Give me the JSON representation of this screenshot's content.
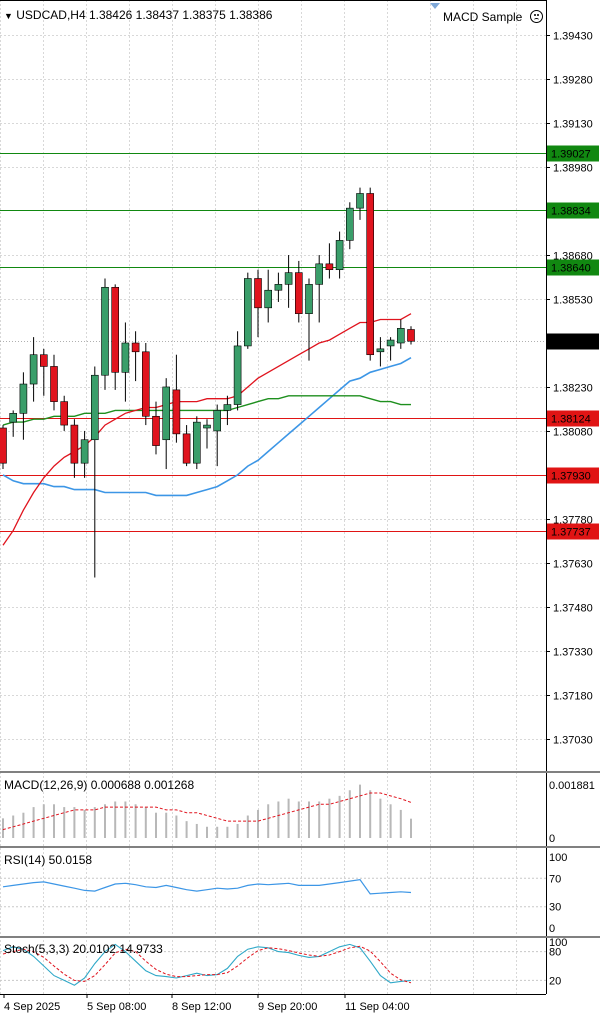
{
  "header": {
    "symbol_line": "USDCAD,H4  1.38426 1.38437 1.38375 1.38386",
    "expert_name": "MACD Sample",
    "expert_icon": "sad-face-icon"
  },
  "colors": {
    "bull": "#3a9e6a",
    "bear": "#e0141e",
    "grid": "#d8d8d8",
    "ma_fast": "#e0141e",
    "ma_slow": "#1e8f1e",
    "ma_blue": "#3c96e6",
    "level_green": "#118811",
    "level_red": "#e01414",
    "current_price_bg": "#000000"
  },
  "chart_data": [
    {
      "type": "candlestick",
      "title": "USDCAD,H4",
      "ylim": [
        1.3692,
        1.3955
      ],
      "y_ticks": [
        "1.39430",
        "1.39280",
        "1.39130",
        "1.38980",
        "1.38680",
        "1.38530",
        "1.38230",
        "1.38080",
        "1.37780",
        "1.37630",
        "1.37480",
        "1.37330",
        "1.37180",
        "1.37030"
      ],
      "x_ticks": [
        "4 Sep 2025",
        "5 Sep 08:00",
        "8 Sep 12:00",
        "9 Sep 20:00",
        "11 Sep 04:00"
      ],
      "candles": [
        {
          "o": 1.3809,
          "h": 1.381,
          "l": 1.3795,
          "c": 1.3797
        },
        {
          "o": 1.3811,
          "h": 1.3815,
          "l": 1.3806,
          "c": 1.3814
        },
        {
          "o": 1.3814,
          "h": 1.3828,
          "l": 1.3805,
          "c": 1.3824
        },
        {
          "o": 1.3824,
          "h": 1.384,
          "l": 1.3818,
          "c": 1.3834
        },
        {
          "o": 1.3834,
          "h": 1.3836,
          "l": 1.382,
          "c": 1.383
        },
        {
          "o": 1.383,
          "h": 1.3834,
          "l": 1.3815,
          "c": 1.3818
        },
        {
          "o": 1.3818,
          "h": 1.382,
          "l": 1.3808,
          "c": 1.381
        },
        {
          "o": 1.381,
          "h": 1.3812,
          "l": 1.3792,
          "c": 1.3797
        },
        {
          "o": 1.3797,
          "h": 1.3808,
          "l": 1.3792,
          "c": 1.3805
        },
        {
          "o": 1.3805,
          "h": 1.383,
          "l": 1.3758,
          "c": 1.3827
        },
        {
          "o": 1.3827,
          "h": 1.386,
          "l": 1.3822,
          "c": 1.3857
        },
        {
          "o": 1.3857,
          "h": 1.3858,
          "l": 1.3822,
          "c": 1.3828
        },
        {
          "o": 1.3828,
          "h": 1.3845,
          "l": 1.3818,
          "c": 1.3838
        },
        {
          "o": 1.3838,
          "h": 1.3842,
          "l": 1.3825,
          "c": 1.3835
        },
        {
          "o": 1.3835,
          "h": 1.3838,
          "l": 1.381,
          "c": 1.3813
        },
        {
          "o": 1.3813,
          "h": 1.3818,
          "l": 1.38,
          "c": 1.3803
        },
        {
          "o": 1.3805,
          "h": 1.3826,
          "l": 1.3795,
          "c": 1.3823
        },
        {
          "o": 1.3822,
          "h": 1.3834,
          "l": 1.3804,
          "c": 1.3807
        },
        {
          "o": 1.3807,
          "h": 1.381,
          "l": 1.3796,
          "c": 1.3797
        },
        {
          "o": 1.3797,
          "h": 1.3813,
          "l": 1.3795,
          "c": 1.3811
        },
        {
          "o": 1.3809,
          "h": 1.3812,
          "l": 1.3802,
          "c": 1.381
        },
        {
          "o": 1.3808,
          "h": 1.3817,
          "l": 1.3796,
          "c": 1.3815
        },
        {
          "o": 1.3815,
          "h": 1.382,
          "l": 1.381,
          "c": 1.3817
        },
        {
          "o": 1.3817,
          "h": 1.3842,
          "l": 1.3815,
          "c": 1.3837
        },
        {
          "o": 1.3837,
          "h": 1.3862,
          "l": 1.3836,
          "c": 1.386
        },
        {
          "o": 1.386,
          "h": 1.3863,
          "l": 1.384,
          "c": 1.385
        },
        {
          "o": 1.385,
          "h": 1.3863,
          "l": 1.3845,
          "c": 1.3856
        },
        {
          "o": 1.3856,
          "h": 1.3862,
          "l": 1.3852,
          "c": 1.3858
        },
        {
          "o": 1.3858,
          "h": 1.3868,
          "l": 1.385,
          "c": 1.3862
        },
        {
          "o": 1.3862,
          "h": 1.3866,
          "l": 1.3845,
          "c": 1.3848
        },
        {
          "o": 1.3848,
          "h": 1.386,
          "l": 1.3832,
          "c": 1.3858
        },
        {
          "o": 1.3858,
          "h": 1.3868,
          "l": 1.3845,
          "c": 1.3865
        },
        {
          "o": 1.3865,
          "h": 1.3872,
          "l": 1.386,
          "c": 1.3863
        },
        {
          "o": 1.3863,
          "h": 1.3876,
          "l": 1.386,
          "c": 1.3873
        },
        {
          "o": 1.3873,
          "h": 1.3886,
          "l": 1.387,
          "c": 1.3884
        },
        {
          "o": 1.3884,
          "h": 1.3891,
          "l": 1.388,
          "c": 1.3889
        },
        {
          "o": 1.3889,
          "h": 1.3891,
          "l": 1.3832,
          "c": 1.3834
        },
        {
          "o": 1.3835,
          "h": 1.384,
          "l": 1.383,
          "c": 1.3836
        },
        {
          "o": 1.3837,
          "h": 1.384,
          "l": 1.3832,
          "c": 1.3839
        },
        {
          "o": 1.3838,
          "h": 1.3846,
          "l": 1.3836,
          "c": 1.3843
        },
        {
          "o": 1.38426,
          "h": 1.38437,
          "l": 1.38375,
          "c": 1.38386
        }
      ],
      "ma_fast": [
        1.3769,
        1.3774,
        1.3781,
        1.3787,
        1.3792,
        1.3796,
        1.3799,
        1.3801,
        1.3803,
        1.3806,
        1.381,
        1.3812,
        1.3814,
        1.3815,
        1.3816,
        1.3816,
        1.3817,
        1.3818,
        1.3818,
        1.3818,
        1.3819,
        1.3819,
        1.3819,
        1.382,
        1.3823,
        1.3826,
        1.3828,
        1.383,
        1.3832,
        1.3834,
        1.3836,
        1.3838,
        1.3839,
        1.3841,
        1.3843,
        1.3845,
        1.3845,
        1.3846,
        1.3846,
        1.3846,
        1.3848
      ],
      "ma_slow": [
        1.381,
        1.3811,
        1.3811,
        1.3812,
        1.3812,
        1.3813,
        1.3813,
        1.3813,
        1.3814,
        1.3814,
        1.3814,
        1.3815,
        1.3815,
        1.3815,
        1.3815,
        1.3815,
        1.3815,
        1.3815,
        1.3815,
        1.3815,
        1.3815,
        1.3815,
        1.3815,
        1.3816,
        1.3817,
        1.3818,
        1.3819,
        1.3819,
        1.382,
        1.382,
        1.382,
        1.382,
        1.382,
        1.382,
        1.382,
        1.382,
        1.3819,
        1.3818,
        1.3818,
        1.3817,
        1.3817
      ],
      "ma_blue": [
        1.3793,
        1.3791,
        1.379,
        1.379,
        1.379,
        1.3789,
        1.3789,
        1.3788,
        1.3788,
        1.3788,
        1.3787,
        1.3787,
        1.3787,
        1.3787,
        1.3787,
        1.3786,
        1.3786,
        1.3786,
        1.3786,
        1.3787,
        1.3788,
        1.3789,
        1.3791,
        1.3793,
        1.3796,
        1.3798,
        1.3801,
        1.3804,
        1.3807,
        1.381,
        1.3813,
        1.3816,
        1.3819,
        1.3822,
        1.3825,
        1.3826,
        1.3828,
        1.3829,
        1.383,
        1.3831,
        1.3833
      ],
      "levels": [
        {
          "label": "1.39027",
          "price": 1.39027,
          "color": "#118811"
        },
        {
          "label": "1.38834",
          "price": 1.38834,
          "color": "#118811"
        },
        {
          "label": "1.38640",
          "price": 1.3864,
          "color": "#118811"
        },
        {
          "label": "1.38124",
          "price": 1.38124,
          "color": "#e01414"
        },
        {
          "label": "1.37930",
          "price": 1.3793,
          "color": "#e01414"
        },
        {
          "label": "1.37737",
          "price": 1.37737,
          "color": "#e01414"
        }
      ],
      "current_price": {
        "label": "1.38386",
        "price": 1.38386
      }
    },
    {
      "type": "histogram",
      "title": "MACD(12,26,9) 0.000688 0.001268",
      "y_ticks": [
        "0.001881",
        "0"
      ],
      "ylim": [
        0,
        0.0021
      ],
      "histogram": [
        0.0007,
        0.0008,
        0.0009,
        0.0011,
        0.0012,
        0.0012,
        0.0011,
        0.0011,
        0.001,
        0.0011,
        0.0012,
        0.0013,
        0.0013,
        0.0012,
        0.0011,
        0.0009,
        0.0009,
        0.0008,
        0.0006,
        0.0005,
        0.0004,
        0.0004,
        0.0004,
        0.0005,
        0.0008,
        0.001,
        0.0012,
        0.0013,
        0.0014,
        0.0013,
        0.0013,
        0.0013,
        0.0014,
        0.0015,
        0.0017,
        0.0019,
        0.0017,
        0.0014,
        0.0012,
        0.001,
        0.000688
      ],
      "signal": [
        0.0003,
        0.0004,
        0.0005,
        0.0006,
        0.0007,
        0.0008,
        0.0009,
        0.001,
        0.001,
        0.001,
        0.0011,
        0.0011,
        0.0011,
        0.0011,
        0.0011,
        0.0011,
        0.001,
        0.001,
        0.0009,
        0.0009,
        0.0008,
        0.0007,
        0.0006,
        0.0006,
        0.0006,
        0.0006,
        0.0007,
        0.0008,
        0.0009,
        0.001,
        0.0011,
        0.0012,
        0.0012,
        0.0013,
        0.0014,
        0.0015,
        0.0016,
        0.0016,
        0.0015,
        0.0014,
        0.001268
      ]
    },
    {
      "type": "line",
      "title": "RSI(14) 50.0158",
      "y_ticks": [
        "100",
        "70",
        "30",
        "0"
      ],
      "ylim": [
        0,
        100
      ],
      "levels": [
        70,
        30
      ],
      "values": [
        58,
        60,
        62,
        64,
        65,
        62,
        59,
        56,
        53,
        52,
        57,
        62,
        63,
        61,
        58,
        57,
        60,
        57,
        54,
        52,
        54,
        56,
        55,
        56,
        60,
        62,
        61,
        62,
        63,
        60,
        60,
        60,
        62,
        64,
        66,
        68,
        48,
        49,
        50,
        51,
        50.0158
      ]
    },
    {
      "type": "line",
      "title": "Stoch(5,3,3) 20.0102 14.9733",
      "y_ticks": [
        "100",
        "80",
        "20"
      ],
      "ylim": [
        0,
        100
      ],
      "levels": [
        80,
        20
      ],
      "main": [
        82,
        90,
        85,
        70,
        50,
        30,
        20,
        10,
        25,
        55,
        80,
        95,
        80,
        60,
        40,
        30,
        28,
        25,
        30,
        35,
        30,
        32,
        45,
        70,
        85,
        90,
        88,
        80,
        78,
        72,
        68,
        70,
        80,
        90,
        95,
        88,
        60,
        30,
        15,
        18,
        20.0102
      ],
      "signal": [
        75,
        80,
        85,
        80,
        68,
        50,
        33,
        20,
        18,
        30,
        53,
        77,
        85,
        80,
        60,
        43,
        33,
        28,
        28,
        30,
        32,
        32,
        36,
        50,
        67,
        82,
        88,
        86,
        82,
        77,
        73,
        70,
        73,
        80,
        88,
        91,
        81,
        59,
        35,
        21,
        14.9733
      ]
    }
  ]
}
